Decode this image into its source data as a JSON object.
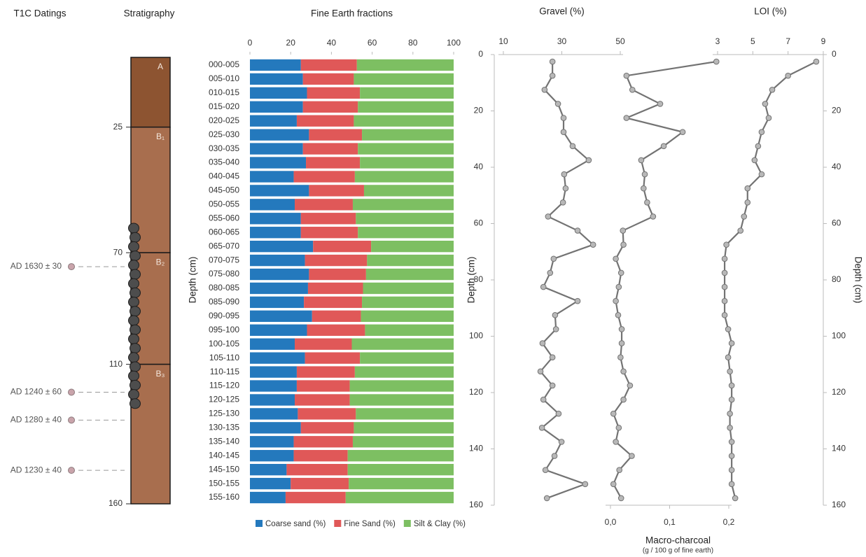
{
  "chart_data": [
    {
      "type": "stratigraphy",
      "datings_title": "T1C Datings",
      "title": "Stratigraphy",
      "ylim": [
        0,
        160
      ],
      "yticks": [
        25,
        70,
        110,
        160
      ],
      "layers": [
        {
          "name": "A",
          "top": 0,
          "bottom": 25,
          "color": "#8d5431"
        },
        {
          "name": "B₁",
          "top": 25,
          "bottom": 70,
          "color": "#a86e4e"
        },
        {
          "name": "B₂",
          "top": 70,
          "bottom": 110,
          "color": "#a86e4e"
        },
        {
          "name": "B₃",
          "top": 110,
          "bottom": 160,
          "color": "#a86e4e"
        }
      ],
      "dating_color": "#c9a4ab",
      "datings": [
        {
          "label": "AD 1630 ± 30",
          "depth": 75
        },
        {
          "label": "AD 1240 ± 60",
          "depth": 120
        },
        {
          "label": "AD 1280 ± 40",
          "depth": 130
        },
        {
          "label": "AD 1230 ± 40",
          "depth": 148
        }
      ]
    },
    {
      "type": "bar",
      "orientation": "horizontal",
      "stacked": true,
      "title": "Fine Earth fractions",
      "y_label": "Depth (cm)",
      "categories": [
        "000-005",
        "005-010",
        "010-015",
        "015-020",
        "020-025",
        "025-030",
        "030-035",
        "035-040",
        "040-045",
        "045-050",
        "050-055",
        "055-060",
        "060-065",
        "065-070",
        "070-075",
        "075-080",
        "080-085",
        "085-090",
        "090-095",
        "095-100",
        "100-105",
        "105-110",
        "110-115",
        "115-120",
        "120-125",
        "125-130",
        "130-135",
        "135-140",
        "140-145",
        "145-150",
        "150-155",
        "155-160"
      ],
      "series": [
        {
          "name": "Coarse sand (%)",
          "color": "#2479bd",
          "values": [
            25,
            26,
            28,
            26,
            23,
            29,
            26,
            27.5,
            21.5,
            29,
            22,
            25,
            25,
            31,
            27,
            29,
            28.5,
            26.5,
            30.5,
            28,
            22,
            27,
            23,
            23,
            22,
            23.5,
            25,
            21.5,
            21.5,
            18,
            20,
            17.5
          ]
        },
        {
          "name": "Fine Sand (%)",
          "color": "#e05858",
          "values": [
            27.5,
            25,
            26,
            27,
            28,
            26,
            27,
            26.5,
            30,
            27,
            28.5,
            27,
            28,
            28.5,
            30.5,
            28,
            27,
            28.5,
            24,
            28.5,
            28,
            27,
            28.5,
            26,
            27,
            28.5,
            26,
            29,
            26.5,
            30,
            28.5,
            29.5
          ]
        },
        {
          "name": "Silt & Clay (%)",
          "color": "#7dbf62",
          "values": [
            47.5,
            49,
            46,
            47,
            49,
            45,
            47,
            46,
            48.5,
            44,
            49.5,
            48,
            47,
            40.5,
            42.5,
            43,
            44.5,
            45,
            45.5,
            43.5,
            50,
            46,
            48.5,
            51,
            51,
            48,
            49,
            49.5,
            52,
            52,
            51.5,
            53
          ]
        }
      ],
      "xlim": [
        0,
        100
      ],
      "xticks": [
        0,
        20,
        40,
        60,
        80,
        100
      ],
      "legend": "bottom"
    },
    {
      "type": "line",
      "title": "Gravel (%)",
      "y_label": "Depth (cm)",
      "xaxis": "top",
      "yaxis": "left",
      "color": "#737373",
      "depths": [
        2.5,
        7.5,
        12.5,
        17.5,
        22.5,
        27.5,
        32.5,
        37.5,
        42.5,
        47.5,
        52.5,
        57.5,
        62.5,
        67.5,
        72.5,
        77.5,
        82.5,
        87.5,
        92.5,
        97.5,
        102.5,
        107.5,
        112.5,
        117.5,
        122.5,
        127.5,
        132.5,
        137.5,
        142.5,
        147.5,
        152.5,
        157.5
      ],
      "values": [
        26.8,
        26.8,
        24.1,
        28.7,
        30.6,
        30.6,
        33.7,
        39.2,
        30.8,
        31.3,
        30.4,
        25.3,
        35.4,
        40.7,
        27.2,
        26,
        23.7,
        35.4,
        27.7,
        28,
        23.4,
        26.8,
        22.7,
        26.8,
        23.7,
        28.9,
        23.2,
        29.9,
        27.5,
        24.4,
        38,
        24.9
      ],
      "xlim": [
        10,
        50
      ],
      "xticks": [
        10,
        30,
        50
      ],
      "ylim": [
        0,
        160
      ],
      "yticks": [
        0,
        20,
        40,
        60,
        80,
        100,
        120,
        140,
        160
      ]
    },
    {
      "type": "line",
      "title": "Macro-charcoal",
      "subtitle": "(g / 100 g of fine earth)",
      "xaxis": "bottom",
      "color": "#737373",
      "depths": [
        2.5,
        7.5,
        12.5,
        17.5,
        22.5,
        27.5,
        32.5,
        37.5,
        42.5,
        47.5,
        52.5,
        57.5,
        62.5,
        67.5,
        72.5,
        77.5,
        82.5,
        87.5,
        92.5,
        97.5,
        102.5,
        107.5,
        112.5,
        117.5,
        122.5,
        127.5,
        132.5,
        137.5,
        142.5,
        147.5,
        152.5,
        157.5
      ],
      "values": [
        0.179,
        0.027,
        0.037,
        0.084,
        0.027,
        0.122,
        0.09,
        0.052,
        0.058,
        0.056,
        0.062,
        0.072,
        0.021,
        0.022,
        0.009,
        0.018,
        0.014,
        0.009,
        0.013,
        0.019,
        0.019,
        0.017,
        0.022,
        0.033,
        0.022,
        0.005,
        0.014,
        0.009,
        0.036,
        0.015,
        0.005,
        0.018
      ],
      "xlim": [
        0,
        0.2
      ],
      "xticks": [
        {
          "value": 0,
          "label": "0,0"
        },
        {
          "value": 0.1,
          "label": "0,1"
        },
        {
          "value": 0.2,
          "label": "0,2"
        }
      ],
      "ylim": [
        0,
        160
      ]
    },
    {
      "type": "line",
      "title": "LOI (%)",
      "y_label": "Depth (cm)",
      "xaxis": "top",
      "yaxis": "right",
      "color": "#737373",
      "depths": [
        2.5,
        7.5,
        12.5,
        17.5,
        22.5,
        27.5,
        32.5,
        37.5,
        42.5,
        47.5,
        52.5,
        57.5,
        62.5,
        67.5,
        72.5,
        77.5,
        82.5,
        87.5,
        92.5,
        97.5,
        102.5,
        107.5,
        112.5,
        117.5,
        122.5,
        127.5,
        132.5,
        137.5,
        142.5,
        147.5,
        152.5,
        157.5
      ],
      "values": [
        8.6,
        7,
        6.1,
        5.7,
        5.9,
        5.5,
        5.3,
        5.1,
        5.5,
        4.7,
        4.7,
        4.5,
        4.3,
        3.5,
        3.4,
        3.4,
        3.4,
        3.4,
        3.4,
        3.6,
        3.8,
        3.6,
        3.7,
        3.8,
        3.8,
        3.7,
        3.7,
        3.8,
        3.8,
        3.8,
        3.8,
        4
      ],
      "xlim": [
        3,
        9
      ],
      "xticks": [
        3,
        5,
        7,
        9
      ],
      "ylim": [
        0,
        160
      ],
      "yticks": [
        0,
        20,
        40,
        60,
        80,
        100,
        120,
        140,
        160
      ]
    }
  ]
}
